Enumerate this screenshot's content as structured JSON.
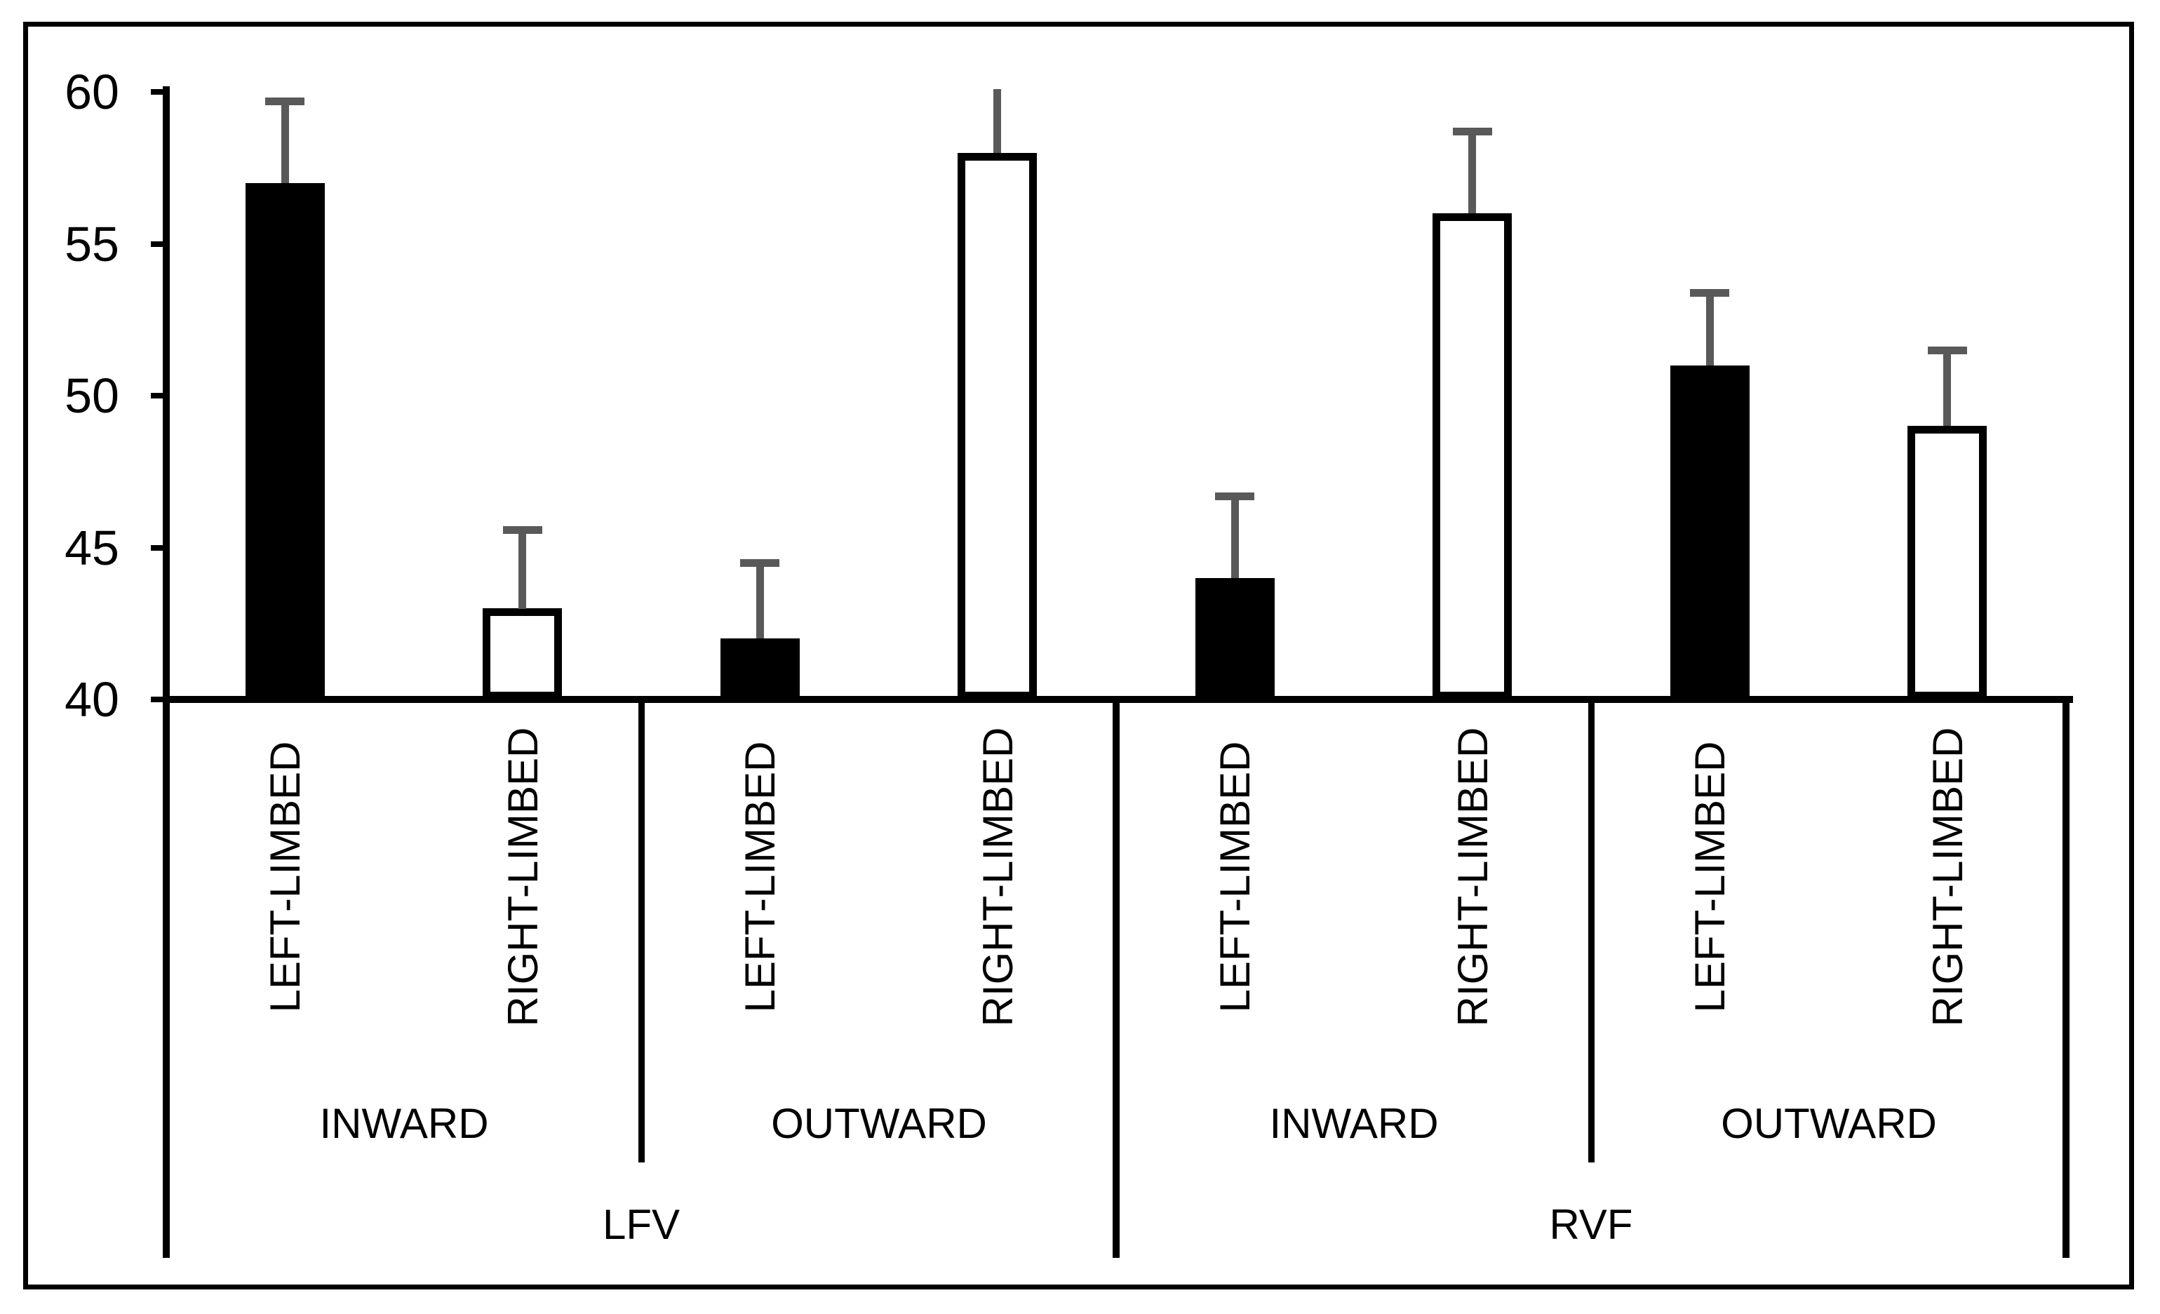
{
  "figure": {
    "background_color": "#ffffff",
    "border_color": "#000000",
    "text_color": "#000000"
  },
  "chart_data": {
    "type": "bar",
    "title": "",
    "xlabel": "",
    "ylabel": "",
    "ylim": [
      40,
      60
    ],
    "yticks": [
      "40",
      "45",
      "50",
      "55",
      "60"
    ],
    "ytick_values": [
      40,
      45,
      50,
      55,
      60
    ],
    "grid": false,
    "legend": false,
    "error_bars": "upper only, gray caps",
    "error_bar_color": "#595959",
    "bar_fill_black": "#000000",
    "bar_fill_white": "#ffffff",
    "bar_outline_color": "#000000",
    "axis_levels": [
      "limb",
      "direction",
      "visual field"
    ],
    "groups": [
      {
        "label": "LFV",
        "conditions": [
          {
            "label": "INWARD",
            "bars": [
              {
                "limb": "LEFT-LIMBED",
                "fill": "#000000",
                "value": 57,
                "error_up": 2.7
              },
              {
                "limb": "RIGHT-LIMBED",
                "fill": "#ffffff",
                "value": 43,
                "error_up": 2.6
              }
            ]
          },
          {
            "label": "OUTWARD",
            "bars": [
              {
                "limb": "LEFT-LIMBED",
                "fill": "#000000",
                "value": 42,
                "error_up": 2.5
              },
              {
                "limb": "RIGHT-LIMBED",
                "fill": "#ffffff",
                "value": 58,
                "error_up": 2.1,
                "error_cap_clipped": true
              }
            ]
          }
        ]
      },
      {
        "label": "RVF",
        "conditions": [
          {
            "label": "INWARD",
            "bars": [
              {
                "limb": "LEFT-LIMBED",
                "fill": "#000000",
                "value": 44,
                "error_up": 2.7
              },
              {
                "limb": "RIGHT-LIMBED",
                "fill": "#ffffff",
                "value": 56,
                "error_up": 2.7
              }
            ]
          },
          {
            "label": "OUTWARD",
            "bars": [
              {
                "limb": "LEFT-LIMBED",
                "fill": "#000000",
                "value": 51,
                "error_up": 2.4
              },
              {
                "limb": "RIGHT-LIMBED",
                "fill": "#ffffff",
                "value": 49,
                "error_up": 2.5
              }
            ]
          }
        ]
      }
    ]
  }
}
